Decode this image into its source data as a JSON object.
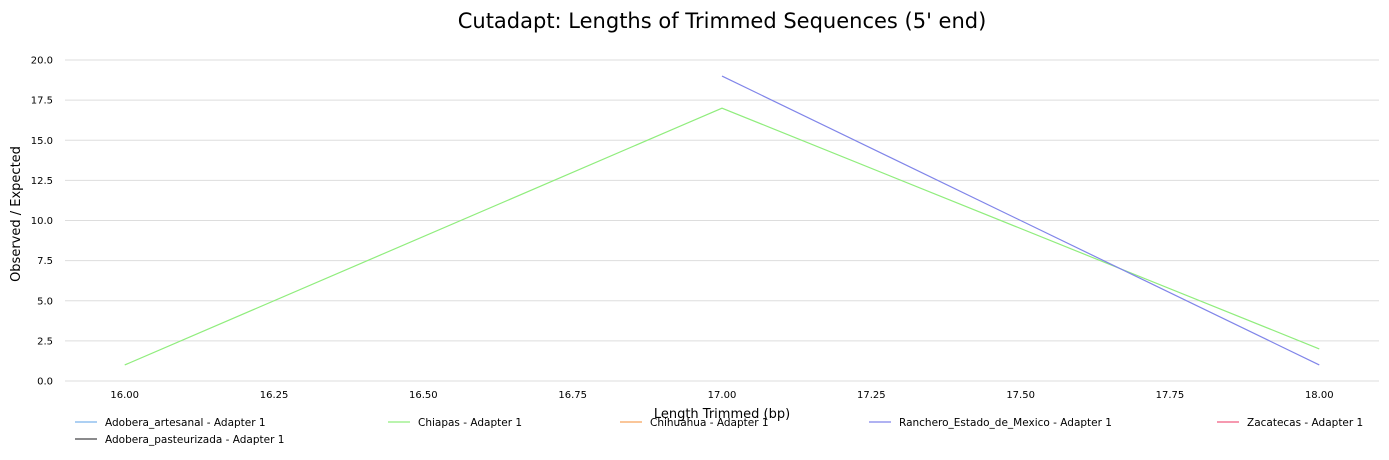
{
  "chart_data": {
    "type": "line",
    "title": "Cutadapt: Lengths of Trimmed Sequences (5' end)",
    "xlabel": "Length Trimmed (bp)",
    "ylabel": "Observed / Expected",
    "xlim": [
      15.9,
      18.1
    ],
    "ylim": [
      0,
      20
    ],
    "x_ticks": [
      "16.00",
      "16.25",
      "16.50",
      "16.75",
      "17.00",
      "17.25",
      "17.50",
      "17.75",
      "18.00"
    ],
    "y_ticks": [
      "0.0",
      "2.5",
      "5.0",
      "7.5",
      "10.0",
      "12.5",
      "15.0",
      "17.5",
      "20.0"
    ],
    "grid": "horizontal",
    "legend_position": "bottom",
    "series": [
      {
        "name": "Adobera_artesanal - Adapter 1",
        "color": "#7cb5ec",
        "x": [],
        "y": []
      },
      {
        "name": "Adobera_pasteurizada - Adapter 1",
        "color": "#434348",
        "x": [],
        "y": []
      },
      {
        "name": "Chiapas - Adapter 1",
        "color": "#90ed7d",
        "x": [
          16,
          17,
          18
        ],
        "y": [
          1,
          17,
          2
        ]
      },
      {
        "name": "Chihuahua - Adapter 1",
        "color": "#f7a35c",
        "x": [],
        "y": []
      },
      {
        "name": "Ranchero_Estado_de_Mexico - Adapter 1",
        "color": "#8085e9",
        "x": [
          17,
          18
        ],
        "y": [
          19,
          1
        ]
      },
      {
        "name": "Zacatecas - Adapter 1",
        "color": "#f15c80",
        "x": [],
        "y": []
      }
    ]
  }
}
